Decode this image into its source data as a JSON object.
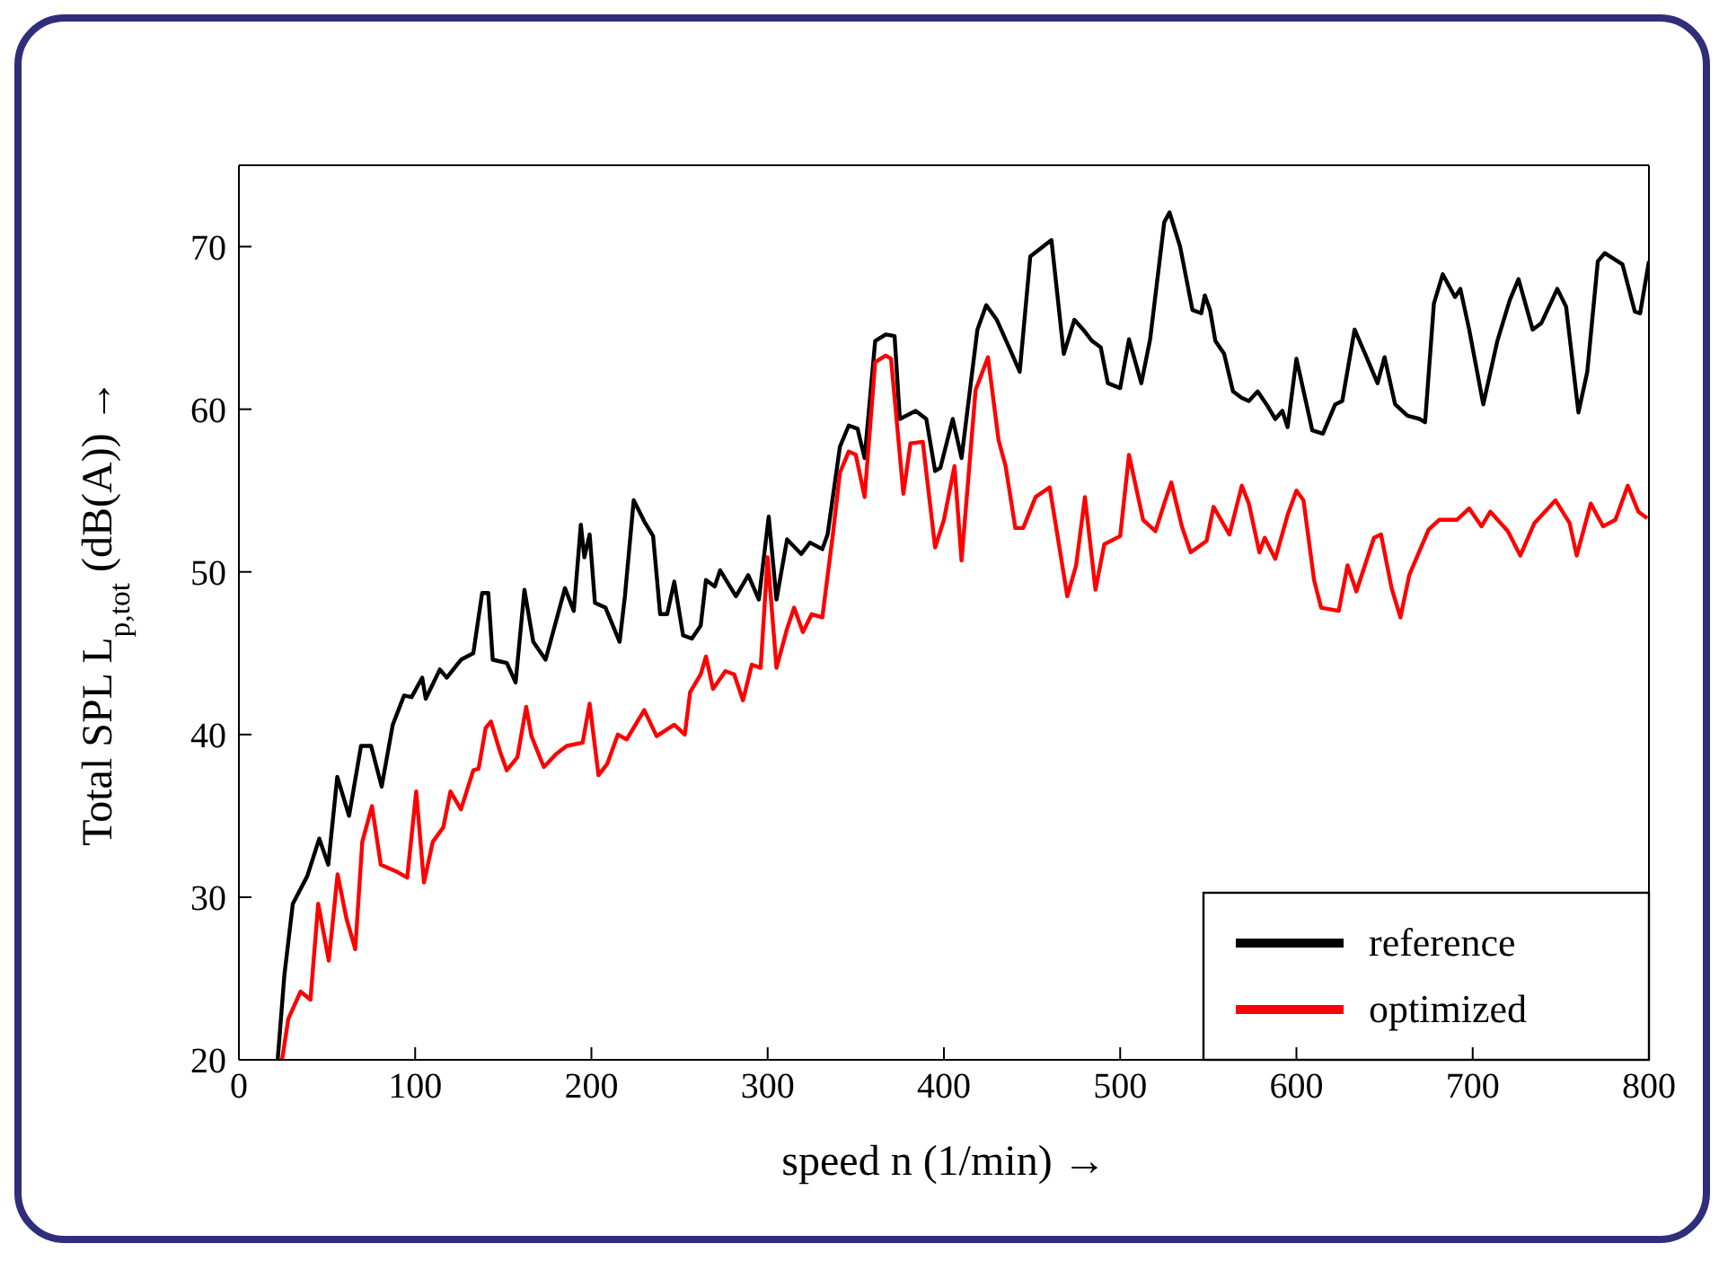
{
  "chart_data": {
    "type": "line",
    "xlabel": "speed n (1/min) →",
    "ylabel": "Total SPL L$_{p,tot}$ (dB(A)) →",
    "xlim": [
      0,
      800
    ],
    "xticks": [
      0,
      100,
      200,
      300,
      400,
      500,
      600,
      700,
      800
    ],
    "ylim": [
      20,
      75
    ],
    "yticks": [
      20,
      30,
      40,
      50,
      60,
      70
    ],
    "legend": "bottom right",
    "marker": "none",
    "line_style": "solid",
    "series": [
      {
        "name": "reference",
        "color": "#000000",
        "x": [
          22,
          25.8,
          30.6,
          38.8,
          45.6,
          50.7,
          55.8,
          62.5,
          69.3,
          75,
          81,
          87.3,
          93.7,
          98,
          104,
          106,
          114,
          118,
          126,
          133,
          138,
          141.5,
          144,
          152,
          157,
          162,
          167,
          174,
          181,
          185,
          190,
          194,
          196,
          199,
          202,
          208,
          216,
          219,
          224,
          230,
          235,
          239,
          243,
          247,
          252,
          257,
          262,
          265,
          270,
          273,
          282,
          289,
          295,
          300.6,
          305,
          311,
          319,
          324,
          331,
          334,
          341,
          346,
          351,
          355,
          361,
          367,
          372,
          375,
          384,
          390,
          395,
          398,
          405,
          410,
          419,
          424,
          430,
          437,
          443,
          449,
          461,
          468,
          474,
          479,
          484,
          489,
          493,
          500,
          505,
          512,
          517,
          525,
          528,
          534,
          541,
          546,
          548,
          551,
          554,
          559,
          564,
          569,
          573,
          578,
          583,
          588,
          592,
          595,
          600,
          609,
          615,
          622,
          626,
          633,
          639,
          646,
          650,
          656,
          663,
          670,
          673,
          678,
          683,
          690,
          693,
          698,
          706,
          714,
          721,
          726,
          734,
          739,
          748,
          753,
          760,
          765,
          771,
          775,
          785,
          792,
          795,
          800
        ],
        "values": [
          20,
          25.2,
          29.6,
          31.3,
          33.6,
          32,
          37.4,
          35,
          39.3,
          39.3,
          36.8,
          40.6,
          42.4,
          42.3,
          43.5,
          42.2,
          44,
          43.5,
          44.6,
          45,
          48.7,
          48.7,
          44.6,
          44.4,
          43.2,
          48.9,
          45.7,
          44.6,
          47.4,
          49,
          47.6,
          52.9,
          50.9,
          52.3,
          48.1,
          47.8,
          45.7,
          48.5,
          54.4,
          53.1,
          52.2,
          47.4,
          47.4,
          49.4,
          46.1,
          45.9,
          46.7,
          49.5,
          49.1,
          50.1,
          48.5,
          49.8,
          48.3,
          53.4,
          48.3,
          52,
          51.1,
          51.8,
          51.4,
          52.3,
          57.7,
          59,
          58.8,
          57,
          64.2,
          64.6,
          64.5,
          59.4,
          59.9,
          59.4,
          56.2,
          56.4,
          59.4,
          57,
          64.9,
          66.4,
          65.5,
          63.8,
          62.3,
          69.4,
          70.4,
          63.4,
          65.5,
          64.9,
          64.2,
          63.8,
          61.6,
          61.3,
          64.3,
          61.6,
          64.3,
          71.5,
          72.1,
          70,
          66.1,
          65.9,
          67,
          66.1,
          64.2,
          63.4,
          61.1,
          60.7,
          60.5,
          61.1,
          60.3,
          59.4,
          59.9,
          58.9,
          63.1,
          58.7,
          58.5,
          60.3,
          60.5,
          64.9,
          63.4,
          61.6,
          63.2,
          60.3,
          59.6,
          59.4,
          59.2,
          66.5,
          68.3,
          66.9,
          67.4,
          64.9,
          60.3,
          64.2,
          66.7,
          68,
          64.9,
          65.3,
          67.4,
          66.3,
          59.8,
          62.3,
          69.1,
          69.6,
          68.9,
          66,
          65.9,
          69.1
        ]
      },
      {
        "name": "optimized",
        "color": "#ff0000",
        "x": [
          24.5,
          28,
          35,
          40.6,
          45,
          51,
          56,
          61,
          66,
          70,
          75.5,
          80.5,
          89,
          95.5,
          100.6,
          105,
          110,
          116,
          120,
          126,
          133,
          136,
          140,
          143,
          148,
          152,
          158,
          163,
          166,
          173,
          180,
          186,
          195,
          199,
          204,
          209,
          215,
          220,
          230,
          237,
          247,
          253,
          256,
          262,
          265,
          269,
          276,
          281,
          286,
          291,
          296,
          300,
          305,
          311,
          315,
          320,
          325,
          331,
          337,
          341,
          346,
          350,
          355,
          361,
          367,
          370,
          377,
          381,
          388,
          395,
          400,
          406,
          410,
          418,
          425,
          431,
          435,
          440.5,
          445,
          452,
          460,
          470,
          475,
          480,
          486,
          491,
          500,
          505,
          513,
          520,
          525,
          529,
          535,
          540,
          549,
          553,
          562,
          569,
          573,
          579,
          582,
          588,
          595,
          600,
          604,
          610,
          614,
          624,
          629,
          634,
          644,
          648,
          654,
          659,
          664,
          675,
          681,
          691,
          698,
          705,
          710,
          720,
          727,
          735,
          747,
          755,
          759,
          767,
          774,
          781,
          788,
          794,
          799
        ],
        "values": [
          20,
          22.5,
          24.2,
          23.7,
          29.6,
          26.1,
          31.4,
          28.7,
          26.8,
          33.4,
          35.6,
          32,
          31.6,
          31.2,
          36.5,
          30.9,
          33.4,
          34.3,
          36.5,
          35.4,
          37.8,
          37.9,
          40.4,
          40.8,
          39,
          37.8,
          38.6,
          41.7,
          39.9,
          38,
          38.8,
          39.3,
          39.5,
          41.9,
          37.5,
          38.2,
          40,
          39.7,
          41.5,
          39.9,
          40.6,
          40,
          42.6,
          43.7,
          44.8,
          42.8,
          43.9,
          43.7,
          42.1,
          44.3,
          44.1,
          50.9,
          44.1,
          46.5,
          47.8,
          46.3,
          47.4,
          47.2,
          52.3,
          56.1,
          57.4,
          57.2,
          54.6,
          62.9,
          63.3,
          63.1,
          54.8,
          57.9,
          58,
          51.5,
          53.2,
          56.5,
          50.7,
          61.2,
          63.2,
          58.1,
          56.5,
          52.7,
          52.7,
          54.6,
          55.2,
          48.5,
          50.4,
          54.6,
          48.9,
          51.7,
          52.2,
          57.2,
          53.2,
          52.5,
          54.2,
          55.5,
          52.8,
          51.2,
          51.9,
          54,
          52.3,
          55.3,
          54.2,
          51.2,
          52.1,
          50.8,
          53.5,
          55,
          54.4,
          49.5,
          47.8,
          47.6,
          50.4,
          48.8,
          52.1,
          52.3,
          49,
          47.2,
          49.8,
          52.6,
          53.2,
          53.2,
          53.9,
          52.8,
          53.7,
          52.5,
          51,
          53,
          54.4,
          53,
          51,
          54.2,
          52.8,
          53.2,
          55.3,
          53.7,
          53.3
        ]
      }
    ]
  }
}
